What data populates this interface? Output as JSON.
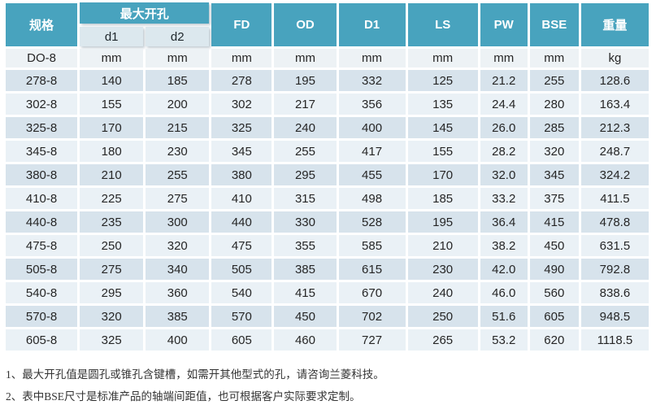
{
  "table": {
    "header": {
      "spec": "规格",
      "max_bore_group": "最大开孔",
      "sub_d1": "d1",
      "sub_d2": "d2",
      "cols": [
        "FD",
        "OD",
        "D1",
        "LS",
        "PW",
        "BSE",
        "重量"
      ]
    },
    "unit_row": {
      "spec": "DO-8",
      "units": [
        "mm",
        "mm",
        "mm",
        "mm",
        "mm",
        "mm",
        "mm",
        "mm",
        "kg"
      ]
    },
    "rows": [
      {
        "spec": "278-8",
        "values": [
          "140",
          "185",
          "278",
          "195",
          "332",
          "125",
          "21.2",
          "255",
          "128.6"
        ]
      },
      {
        "spec": "302-8",
        "values": [
          "155",
          "200",
          "302",
          "217",
          "356",
          "135",
          "24.4",
          "280",
          "163.4"
        ]
      },
      {
        "spec": "325-8",
        "values": [
          "170",
          "215",
          "325",
          "240",
          "400",
          "145",
          "26.0",
          "285",
          "212.3"
        ]
      },
      {
        "spec": "345-8",
        "values": [
          "180",
          "230",
          "345",
          "255",
          "417",
          "155",
          "28.2",
          "320",
          "248.7"
        ]
      },
      {
        "spec": "380-8",
        "values": [
          "210",
          "255",
          "380",
          "295",
          "455",
          "170",
          "32.0",
          "345",
          "324.2"
        ]
      },
      {
        "spec": "410-8",
        "values": [
          "225",
          "275",
          "410",
          "315",
          "498",
          "185",
          "33.2",
          "375",
          "411.5"
        ]
      },
      {
        "spec": "440-8",
        "values": [
          "235",
          "300",
          "440",
          "330",
          "528",
          "195",
          "36.4",
          "415",
          "478.8"
        ]
      },
      {
        "spec": "475-8",
        "values": [
          "250",
          "320",
          "475",
          "355",
          "585",
          "210",
          "38.2",
          "450",
          "631.5"
        ]
      },
      {
        "spec": "505-8",
        "values": [
          "275",
          "340",
          "505",
          "385",
          "615",
          "230",
          "42.0",
          "490",
          "792.8"
        ]
      },
      {
        "spec": "540-8",
        "values": [
          "295",
          "360",
          "540",
          "415",
          "670",
          "240",
          "46.0",
          "560",
          "838.6"
        ]
      },
      {
        "spec": "570-8",
        "values": [
          "320",
          "385",
          "570",
          "450",
          "702",
          "250",
          "51.6",
          "605",
          "948.5"
        ]
      },
      {
        "spec": "605-8",
        "values": [
          "325",
          "400",
          "605",
          "460",
          "727",
          "265",
          "53.2",
          "620",
          "1118.5"
        ]
      }
    ]
  },
  "notes": [
    "1、最大开孔值是圆孔或锥孔含键槽，如需开其他型式的孔，请咨询兰菱科技。",
    "2、表中BSE尺寸是标准产品的轴端间距值，也可根据客户实际要求定制。"
  ],
  "colors": {
    "header_teal": "#48a3be",
    "subheader_bg": "#dce8ee",
    "unit_row_bg": "#edf2f5",
    "row_dark_bg": "#d7e3ec",
    "row_light_bg": "#eaf1f6",
    "header_text": "#ffffff",
    "body_text": "#262626"
  }
}
